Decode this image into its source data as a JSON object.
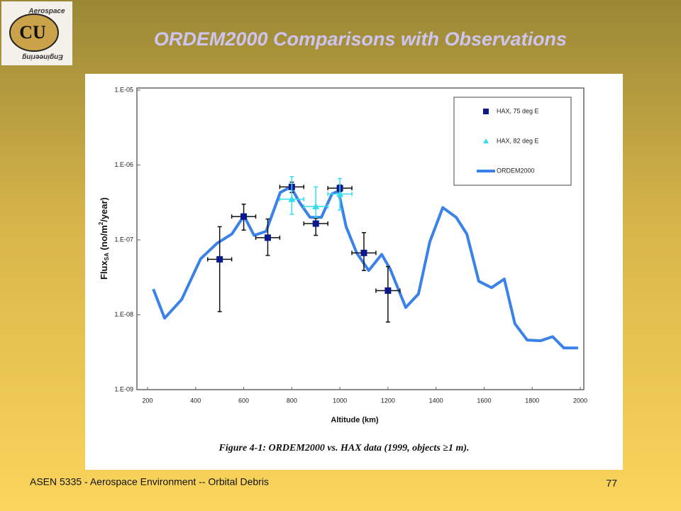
{
  "slide": {
    "title": "ORDEM2000 Comparisons with Observations",
    "footer": "ASEN 5335 - Aerospace Environment -- Orbital Debris",
    "page_number": "77",
    "logo": {
      "mark": "CU",
      "top": "Aerospace",
      "bottom": "Engineering"
    }
  },
  "chart_data": {
    "type": "scatter",
    "caption": "Figure 4-1:  ORDEM2000 vs. HAX data (1999, objects ≥1 m).",
    "xlabel": "Altitude (km)",
    "ylabel_parts": [
      "Flux",
      "SA",
      " (no/m",
      "2",
      "/year)"
    ],
    "xlim": [
      200,
      2000
    ],
    "xticks": [
      200,
      400,
      600,
      800,
      1000,
      1200,
      1400,
      1600,
      1800,
      2000
    ],
    "ylog": true,
    "ylim": [
      1e-09,
      1e-05
    ],
    "yticks": [
      {
        "value": 1e-09,
        "label": "1.E-09"
      },
      {
        "value": 1e-08,
        "label": "1.E-08"
      },
      {
        "value": 1e-07,
        "label": "1.E-07"
      },
      {
        "value": 1e-06,
        "label": "1.E-06"
      },
      {
        "value": 1e-05,
        "label": "1.E-05"
      }
    ],
    "legend": "upper right",
    "series": [
      {
        "name": "HAX, 75 deg E",
        "color": "#0a1a8c",
        "marker": "square",
        "x": [
          500,
          600,
          700,
          800,
          900,
          1000,
          1100,
          1200
        ],
        "values": [
          5.5e-08,
          2.05e-07,
          1.07e-07,
          5.1e-07,
          1.65e-07,
          4.9e-07,
          6.7e-08,
          2.1e-08
        ],
        "y_low": [
          1.1e-08,
          1.35e-07,
          6.2e-08,
          4.3e-07,
          1.15e-07,
          4.4e-07,
          3.9e-08,
          8e-09
        ],
        "y_high": [
          1.5e-07,
          3e-07,
          1.9e-07,
          5.9e-07,
          1.95e-07,
          5.4e-07,
          1.25e-07,
          4.4e-08
        ],
        "xerr": [
          50,
          50,
          50,
          50,
          50,
          50,
          50,
          50
        ]
      },
      {
        "name": "HAX, 82 deg E",
        "color": "#33ddee",
        "marker": "triangle",
        "x": [
          800,
          900,
          1000
        ],
        "values": [
          3.5e-07,
          2.8e-07,
          4.1e-07
        ],
        "y_low": [
          2.2e-07,
          2e-07,
          2.5e-07
        ],
        "y_high": [
          7e-07,
          5.1e-07,
          6.6e-07
        ],
        "xerr": [
          50,
          50,
          50
        ]
      },
      {
        "name": "ORDEM2000",
        "color": "#3b82e8",
        "marker": "line",
        "x": [
          224,
          271,
          342,
          421,
          489,
          551,
          601,
          643,
          693,
          752,
          796,
          834,
          876,
          923,
          967,
          994,
          1026,
          1070,
          1120,
          1174,
          1209,
          1274,
          1327,
          1374,
          1428,
          1484,
          1528,
          1578,
          1631,
          1684,
          1728,
          1779,
          1835,
          1885,
          1932,
          1991
        ],
        "values": [
          2.2e-08,
          9e-09,
          1.6e-08,
          5.6e-08,
          9e-08,
          1.2e-07,
          2.1e-07,
          1.15e-07,
          1.3e-07,
          4.3e-07,
          5.1e-07,
          3.1e-07,
          2e-07,
          2e-07,
          4.1e-07,
          4.5e-07,
          1.5e-07,
          6.7e-08,
          3.9e-08,
          6.4e-08,
          4.1e-08,
          1.25e-08,
          1.9e-08,
          9.4e-08,
          2.7e-07,
          2e-07,
          1.2e-07,
          2.8e-08,
          2.3e-08,
          3e-08,
          7.6e-09,
          4.6e-09,
          4.5e-09,
          5.1e-09,
          3.6e-09,
          3.6e-09
        ]
      }
    ]
  }
}
